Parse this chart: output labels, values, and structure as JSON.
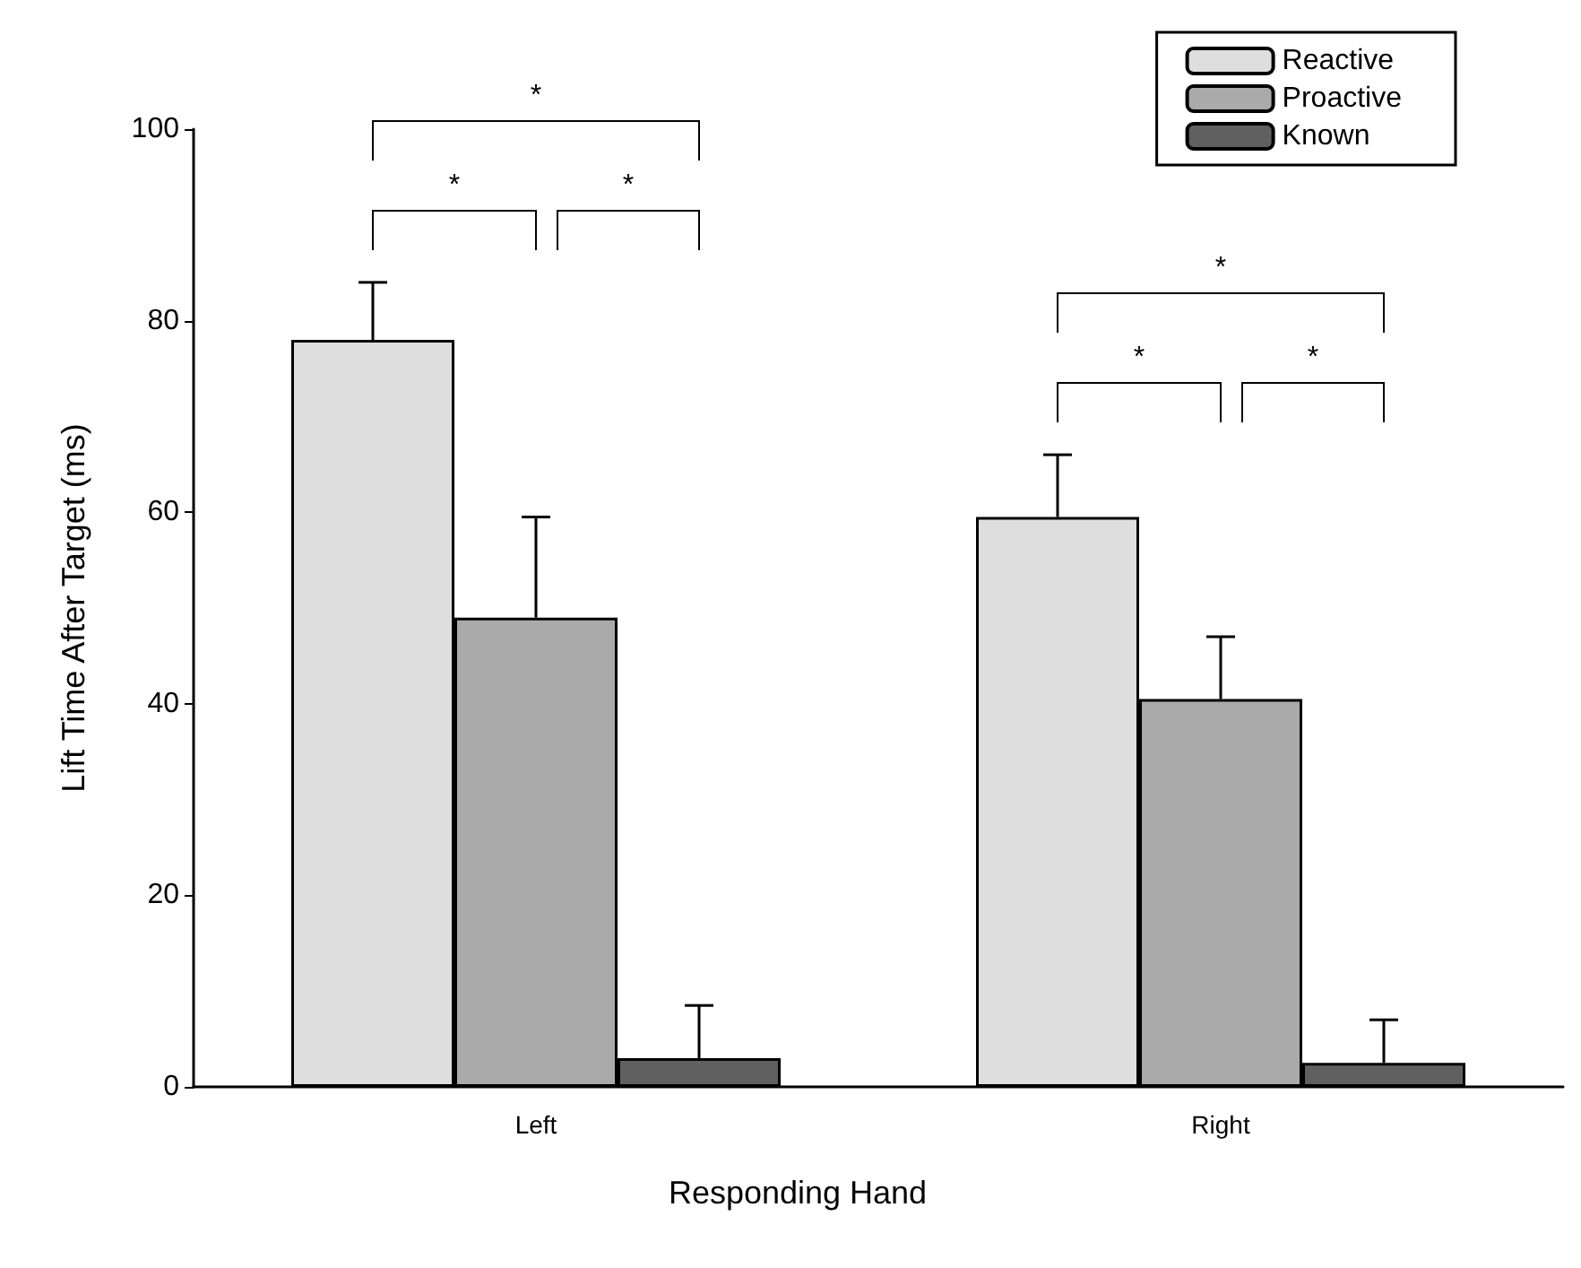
{
  "chart_data": {
    "type": "bar",
    "xlabel": "Responding Hand",
    "ylabel": "Lift Time After Target (ms)",
    "categories": [
      "Left",
      "Right"
    ],
    "series": [
      {
        "name": "Reactive",
        "color": "#dedede",
        "values": [
          78,
          59.5
        ],
        "errors": [
          [
            78,
            84
          ],
          [
            59.5,
            66
          ]
        ]
      },
      {
        "name": "Proactive",
        "color": "#aaaaaa",
        "values": [
          49,
          40.5
        ],
        "errors": [
          [
            49,
            59.5
          ],
          [
            40.5,
            47
          ]
        ]
      },
      {
        "name": "Known",
        "color": "#606060",
        "values": [
          3,
          2.5
        ],
        "errors": [
          [
            3,
            8.5
          ],
          [
            2.5,
            7
          ]
        ]
      }
    ],
    "ylim": [
      0,
      100
    ],
    "yticks": [
      0,
      20,
      40,
      60,
      80,
      100
    ],
    "grid": false,
    "legend": "top right",
    "annotations": [
      "*",
      "*",
      "*",
      "*",
      "*",
      "*"
    ]
  }
}
